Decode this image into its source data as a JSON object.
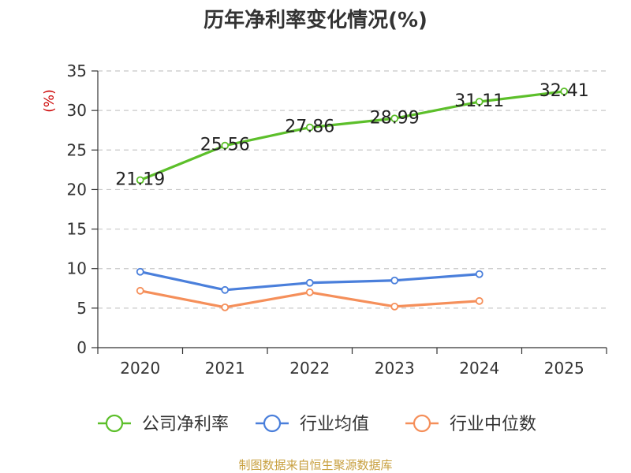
{
  "chart_data": {
    "type": "line",
    "title": "历年净利率变化情况(%)",
    "ylabel": "(%)",
    "xlabel": "",
    "ylim": [
      0,
      35
    ],
    "yticks": [
      0,
      5,
      10,
      15,
      20,
      25,
      30,
      35
    ],
    "categories": [
      "2020",
      "2021",
      "2022",
      "2023",
      "2024",
      "2025"
    ],
    "grid": true,
    "legend_position": "bottom",
    "series": [
      {
        "name": "公司净利率",
        "color": "#5cbf2a",
        "values": [
          21.19,
          25.56,
          27.86,
          28.99,
          31.11,
          32.41
        ],
        "labels": [
          "21.19",
          "25.56",
          "27.86",
          "28.99",
          "31.11",
          "32.41"
        ],
        "show_labels": true
      },
      {
        "name": "行业均值",
        "color": "#4a7fdb",
        "values": [
          9.6,
          7.3,
          8.2,
          8.5,
          9.3,
          null
        ],
        "show_labels": false
      },
      {
        "name": "行业中位数",
        "color": "#f58f5a",
        "values": [
          7.2,
          5.1,
          7.0,
          5.2,
          5.9,
          null
        ],
        "show_labels": false
      }
    ]
  },
  "ylabel_color": "#cc0000",
  "source_note": "制图数据来自恒生聚源数据库"
}
